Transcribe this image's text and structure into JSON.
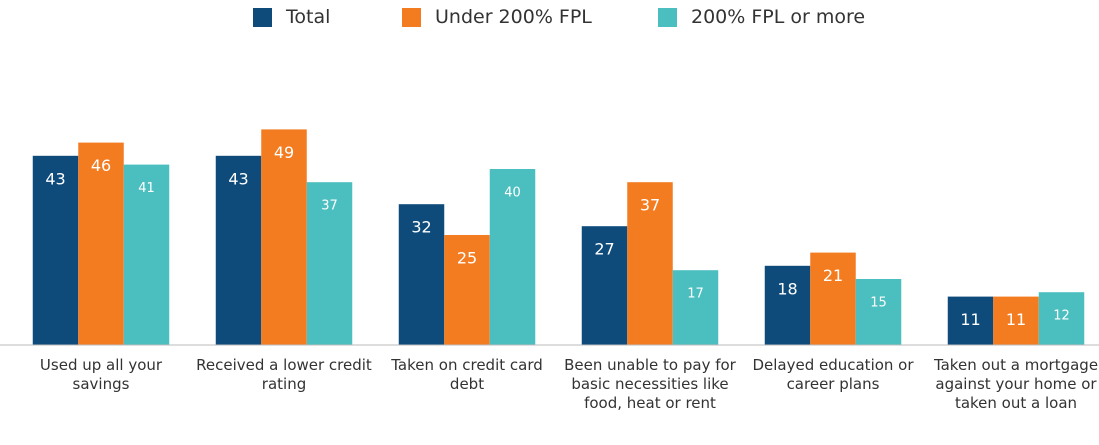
{
  "chart_data": {
    "type": "bar",
    "categories": [
      "Used up all your savings",
      "Received a lower credit rating",
      "Taken on credit card debt",
      "Been unable to pay for basic necessities like food, heat or rent",
      "Delayed education or career plans",
      "Taken out a mortgage against your home or taken out a loan"
    ],
    "series": [
      {
        "name": "Total",
        "color": "#0e4b7a",
        "values": [
          43,
          43,
          32,
          27,
          18,
          11
        ]
      },
      {
        "name": "Under 200% FPL",
        "color": "#f47c20",
        "values": [
          46,
          49,
          25,
          37,
          21,
          11
        ]
      },
      {
        "name": "200% FPL or more",
        "color": "#4bbfbf",
        "values": [
          41,
          37,
          40,
          17,
          15,
          12
        ]
      }
    ],
    "ylim": [
      0,
      60
    ],
    "legend": "top"
  }
}
